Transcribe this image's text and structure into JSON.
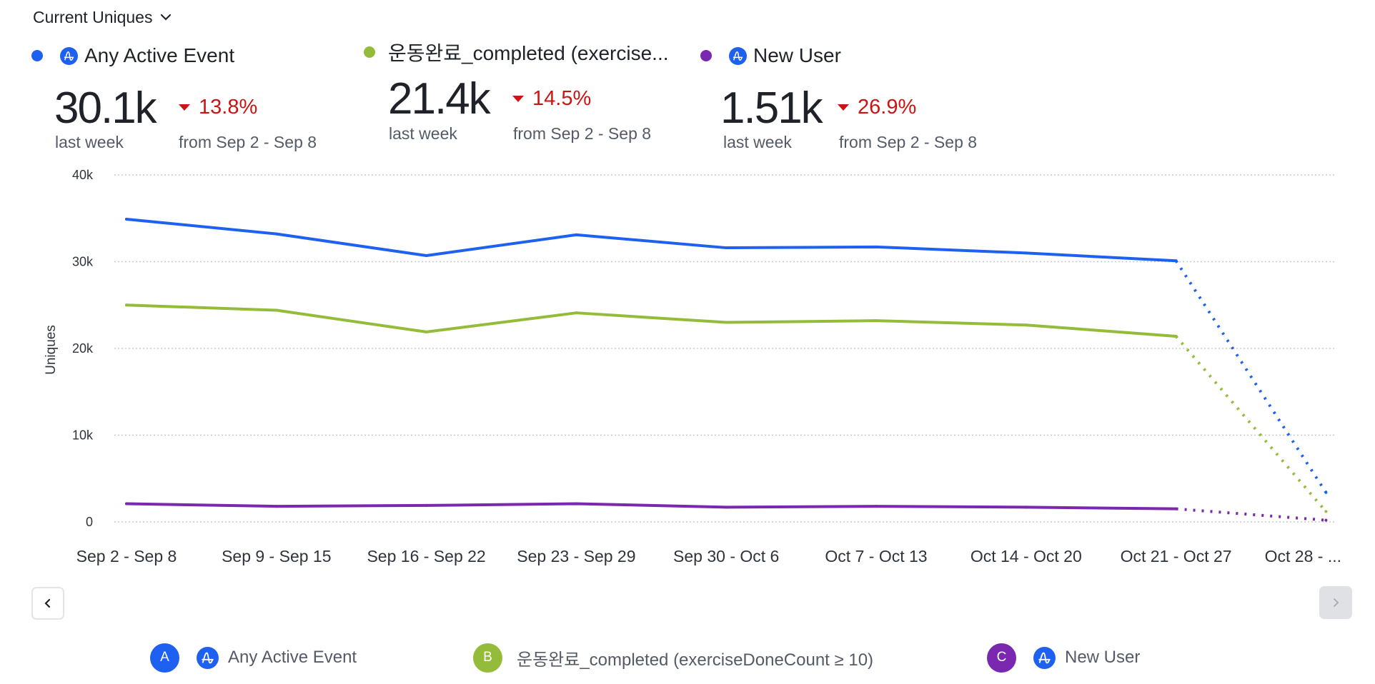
{
  "header": {
    "metric_selector": "Current Uniques",
    "series": [
      {
        "name": "Any Active Event",
        "color": "#1e61f0",
        "icon": "amplitude-icon",
        "value": "30.1k",
        "value_label": "last week",
        "change": "13.8%",
        "change_direction": "down",
        "comparison": "from Sep 2 - Sep 8"
      },
      {
        "name": "운동완료_completed (exercise...",
        "color": "#94bc3a",
        "icon": null,
        "value": "21.4k",
        "value_label": "last week",
        "change": "14.5%",
        "change_direction": "down",
        "comparison": "from Sep 2 - Sep 8"
      },
      {
        "name": "New User",
        "color": "#7b28b0",
        "icon": "amplitude-icon",
        "value": "1.51k",
        "value_label": "last week",
        "change": "26.9%",
        "change_direction": "down",
        "comparison": "from Sep 2 - Sep 8"
      }
    ],
    "change_color": "#cc1414"
  },
  "navigation": {
    "prev_icon": "chevron-left-icon",
    "next_icon": "chevron-right-icon",
    "next_disabled": true
  },
  "legend": [
    {
      "badge": "A",
      "label": "Any Active Event",
      "color": "#1e61f0",
      "icon": "amplitude-icon"
    },
    {
      "badge": "B",
      "label": "운동완료_completed (exerciseDoneCount ≥ 10)",
      "color": "#94bc3a",
      "icon": null
    },
    {
      "badge": "C",
      "label": "New User",
      "color": "#7b28b0",
      "icon": "amplitude-icon"
    }
  ],
  "chart_data": {
    "type": "line",
    "title": "Current Uniques",
    "xlabel": "",
    "ylabel": "Uniques",
    "ylim": [
      0,
      40000
    ],
    "yticks": [
      0,
      10000,
      20000,
      30000,
      40000
    ],
    "ytick_labels": [
      "0",
      "10k",
      "20k",
      "30k",
      "40k"
    ],
    "grid": true,
    "categories": [
      "Sep 2 - Sep 8",
      "Sep 9 - Sep 15",
      "Sep 16 - Sep 22",
      "Sep 23 - Sep 29",
      "Sep 30 - Oct 6",
      "Oct 7 - Oct 13",
      "Oct 14 - Oct 20",
      "Oct 21 - Oct 27",
      "Oct 28 - ..."
    ],
    "incomplete_from_index": 7,
    "series": [
      {
        "name": "Any Active Event",
        "color": "#1e61f0",
        "values": [
          34900,
          33200,
          30700,
          33100,
          31600,
          31700,
          31000,
          30100,
          3400
        ]
      },
      {
        "name": "운동완료_completed (exerciseDoneCount ≥ 10)",
        "color": "#94bc3a",
        "values": [
          25000,
          24400,
          21900,
          24100,
          23000,
          23200,
          22700,
          21400,
          1200
        ]
      },
      {
        "name": "New User",
        "color": "#7b28b0",
        "values": [
          2100,
          1800,
          1900,
          2100,
          1700,
          1800,
          1700,
          1510,
          200
        ]
      }
    ]
  }
}
